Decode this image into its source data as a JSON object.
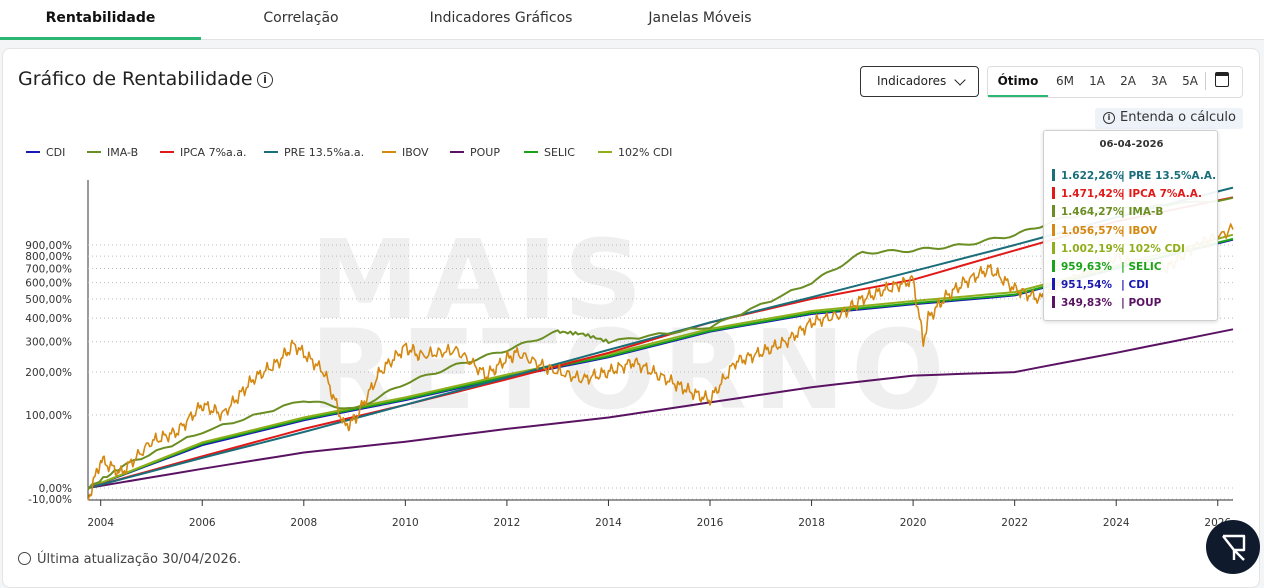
{
  "tabs": [
    {
      "label": "Rentabilidade",
      "active": true
    },
    {
      "label": "Correlação",
      "active": false
    },
    {
      "label": "Indicadores Gráficos",
      "active": false
    },
    {
      "label": "Janelas Móveis",
      "active": false
    }
  ],
  "header": {
    "title": "Gráfico de Rentabilidade",
    "info_icon": "info-circle-icon",
    "indicators_button": "Indicadores",
    "periods": [
      "Ótimo",
      "6M",
      "1A",
      "2A",
      "3A",
      "5A"
    ],
    "active_period": "Ótimo",
    "calendar_icon": "calendar-icon",
    "entenda_label": "Entenda o cálculo"
  },
  "watermark": "MAIS RETORNO",
  "tooltip": {
    "date": "06-04-2026",
    "rows": [
      {
        "value": "1.622,26%",
        "label": "| PRE 13.5%A.A.",
        "color": "#1a6e7a"
      },
      {
        "value": "1.471,42%",
        "label": "| IPCA 7%A.A.",
        "color": "#e11919"
      },
      {
        "value": "1.464,27%",
        "label": "| IMA-B",
        "color": "#6b8e23"
      },
      {
        "value": "1.056,57%",
        "label": "| IBOV",
        "color": "#d4880f"
      },
      {
        "value": "1.002,19%",
        "label": "| 102% CDI",
        "color": "#8fae1b"
      },
      {
        "value": "959,63%",
        "label": "| SELIC",
        "color": "#1aa31a"
      },
      {
        "value": "951,54%",
        "label": "| CDI",
        "color": "#1919b3"
      },
      {
        "value": "349,83%",
        "label": "| POUP",
        "color": "#5a1363"
      }
    ]
  },
  "footer": {
    "text": "Última atualização 30/04/2026."
  },
  "chart_data": {
    "type": "line",
    "y_scale": "log(1+r)",
    "y_ticks": [
      "900,00%",
      "800,00%",
      "700,00%",
      "600,00%",
      "500,00%",
      "400,00%",
      "300,00%",
      "200,00%",
      "100,00%",
      "0,00%",
      "-10,00%"
    ],
    "y_tick_values": [
      900,
      800,
      700,
      600,
      500,
      400,
      300,
      200,
      100,
      0,
      -10
    ],
    "x_ticks": [
      "2004",
      "2006",
      "2008",
      "2010",
      "2012",
      "2014",
      "2016",
      "2018",
      "2020",
      "2022",
      "2024",
      "2026"
    ],
    "x_tick_values": [
      2004,
      2006,
      2008,
      2010,
      2012,
      2014,
      2016,
      2018,
      2020,
      2022,
      2024,
      2026
    ],
    "x_range": [
      2003.75,
      2026.3
    ],
    "grid": true,
    "legend_position": "top-left",
    "series": [
      {
        "name": "CDI",
        "color": "#1919b3",
        "x": [
          2003.75,
          2006,
          2008,
          2010,
          2012,
          2014,
          2016,
          2018,
          2020,
          2022,
          2024,
          2026.3
        ],
        "y": [
          0,
          50,
          90,
          130,
          185,
          245,
          340,
          420,
          470,
          520,
          700,
          951.54
        ]
      },
      {
        "name": "IMA-B",
        "color": "#6b8e23",
        "x": [
          2003.75,
          2004.5,
          2006,
          2008,
          2009,
          2010,
          2011,
          2012,
          2013,
          2013.5,
          2014,
          2016,
          2018,
          2019,
          2020,
          2021,
          2022,
          2023,
          2024,
          2025,
          2026.3
        ],
        "y": [
          0,
          25,
          70,
          130,
          110,
          170,
          220,
          270,
          340,
          330,
          300,
          360,
          600,
          830,
          850,
          900,
          1000,
          1200,
          1300,
          1350,
          1464.27
        ]
      },
      {
        "name": "IPCA 7%a.a.",
        "color": "#e11919",
        "x": [
          2003.75,
          2006,
          2008,
          2010,
          2012,
          2014,
          2016,
          2018,
          2020,
          2022,
          2024,
          2026.3
        ],
        "y": [
          0,
          35,
          75,
          120,
          180,
          260,
          380,
          500,
          620,
          850,
          1150,
          1471.42
        ]
      },
      {
        "name": "PRE 13.5%a.a.",
        "color": "#1a6e7a",
        "x": [
          2003.75,
          2006,
          2008,
          2010,
          2012,
          2014,
          2016,
          2018,
          2020,
          2022,
          2024,
          2026.3
        ],
        "y": [
          0,
          33,
          70,
          120,
          185,
          270,
          380,
          510,
          680,
          900,
          1200,
          1622.26
        ]
      },
      {
        "name": "IBOV",
        "color": "#d4880f",
        "x": [
          2003.75,
          2004,
          2004.4,
          2005,
          2005.5,
          2006,
          2006.4,
          2007,
          2007.5,
          2007.8,
          2008.4,
          2008.8,
          2009,
          2009.5,
          2010,
          2010.3,
          2011,
          2011.6,
          2012,
          2012.2,
          2012.8,
          2013.5,
          2014,
          2014.5,
          2015,
          2015.6,
          2016,
          2016.5,
          2017,
          2017.5,
          2018,
          2018.6,
          2019,
          2019.5,
          2020,
          2020.2,
          2020.3,
          2020.6,
          2021,
          2021.5,
          2022,
          2022.5,
          2023,
          2024,
          2025,
          2025.5,
          2026.3
        ],
        "y": [
          -10,
          30,
          15,
          55,
          70,
          120,
          100,
          180,
          230,
          290,
          200,
          80,
          90,
          200,
          280,
          250,
          270,
          190,
          240,
          260,
          210,
          180,
          200,
          230,
          190,
          150,
          130,
          230,
          260,
          300,
          380,
          420,
          500,
          560,
          620,
          300,
          400,
          500,
          600,
          700,
          560,
          500,
          600,
          780,
          700,
          880,
          1056.57
        ]
      },
      {
        "name": "POUP",
        "color": "#5a1363",
        "x": [
          2003.75,
          2006,
          2008,
          2010,
          2012,
          2014,
          2016,
          2018,
          2020,
          2022,
          2024,
          2026.3
        ],
        "y": [
          0,
          20,
          40,
          55,
          75,
          95,
          125,
          160,
          190,
          200,
          260,
          349.83
        ]
      },
      {
        "name": "SELIC",
        "color": "#1aa31a",
        "x": [
          2003.75,
          2006,
          2008,
          2010,
          2012,
          2014,
          2016,
          2018,
          2020,
          2022,
          2024,
          2026.3
        ],
        "y": [
          0,
          52,
          92,
          132,
          188,
          248,
          343,
          425,
          476,
          525,
          705,
          959.63
        ]
      },
      {
        "name": "102% CDI",
        "color": "#8fae1b",
        "x": [
          2003.75,
          2006,
          2008,
          2010,
          2012,
          2014,
          2016,
          2018,
          2020,
          2022,
          2024,
          2026.3
        ],
        "y": [
          0,
          54,
          95,
          136,
          193,
          255,
          352,
          435,
          488,
          540,
          722,
          1002.19
        ]
      }
    ]
  }
}
